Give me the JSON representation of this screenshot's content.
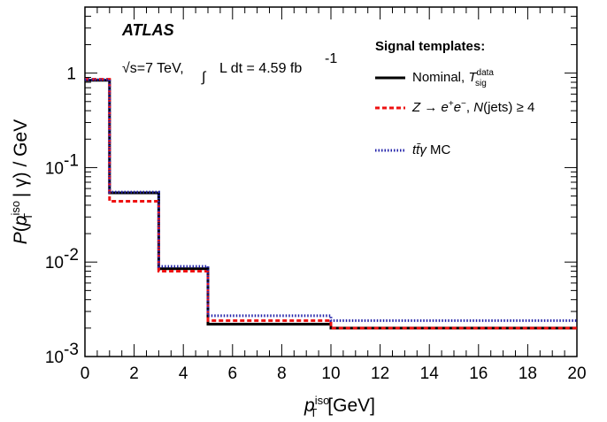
{
  "chart_data": {
    "type": "line",
    "step": true,
    "ylabel": "P(p_T^iso | γ) / GeV",
    "xlabel": "p_T^iso [GeV]",
    "xlim": [
      0,
      20
    ],
    "ylim": [
      0.001,
      5
    ],
    "yscale": "log",
    "xticks": [
      "0",
      "2",
      "4",
      "6",
      "8",
      "10",
      "12",
      "14",
      "16",
      "18",
      "20"
    ],
    "yticks": [
      {
        "value": 1,
        "label": "1"
      },
      {
        "value": 0.1,
        "label": "10",
        "exp": "-1"
      },
      {
        "value": 0.01,
        "label": "10",
        "exp": "-2"
      },
      {
        "value": 0.001,
        "label": "10",
        "exp": "-3"
      }
    ],
    "bin_edges": [
      0,
      1,
      3,
      5,
      10,
      20
    ],
    "series": [
      {
        "name": "Nominal, T_sig^data",
        "color": "#000000",
        "style": "solid",
        "values": [
          0.84,
          0.054,
          0.0085,
          0.0022,
          0.002
        ]
      },
      {
        "name": "Z → e+e−, N(jets) ≥ 4",
        "color": "#ee1111",
        "style": "dashed",
        "values": [
          0.86,
          0.044,
          0.008,
          0.0024,
          0.002
        ]
      },
      {
        "name": "tt̄γ MC",
        "color": "#2222aa",
        "style": "dotted",
        "values": [
          0.85,
          0.055,
          0.009,
          0.0027,
          0.0024
        ]
      }
    ],
    "legend_title": "Signal templates:",
    "legend_position": "top-right",
    "annotations": {
      "experiment": "ATLAS",
      "sqrt_s": "√s=7 TeV,",
      "lumi_label": "L dt = 4.59 fb",
      "lumi_exp": "-1"
    }
  }
}
